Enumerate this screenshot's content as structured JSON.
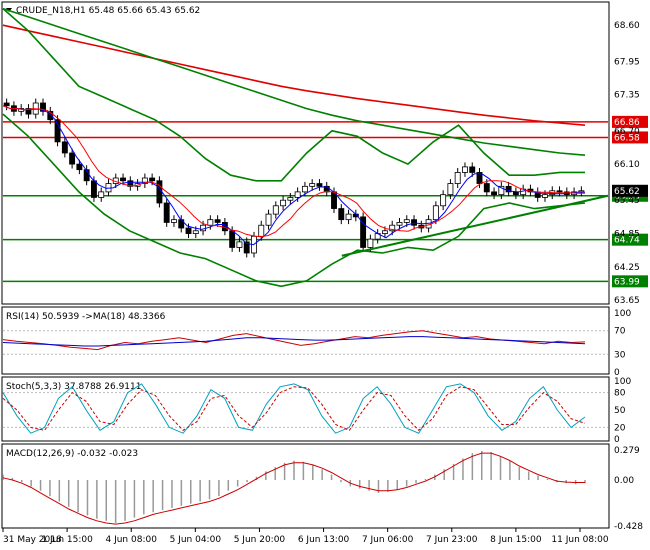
{
  "header": {
    "symbol_line": "CRUDE_N18,H1  65.48 65.66 65.43 65.62"
  },
  "colors": {
    "candle": "#000000",
    "bollinger": "#008000",
    "ma_slow_red": "#e00000",
    "ma_fast_blue": "#0000ff",
    "ma_fast_red": "#ff0000",
    "level_green": "#008000",
    "level_red": "#e00000",
    "rsi_line": "#cc0000",
    "rsi_ma": "#0000cc",
    "stoch_main": "#00a0c0",
    "stoch_signal": "#cc0000",
    "macd_hist": "#999999",
    "macd_signal": "#cc0000"
  },
  "chart_data": [
    {
      "type": "line",
      "name": "price-panel",
      "ylim": [
        63.6,
        69.0
      ],
      "yticks": [
        "68.60",
        "67.95",
        "67.35",
        "66.70",
        "66.10",
        "65.45",
        "64.85",
        "64.25",
        "63.65"
      ],
      "levels": [
        {
          "value": 66.86,
          "label": "66.86",
          "color": "red"
        },
        {
          "value": 66.58,
          "label": "66.58",
          "color": "red"
        },
        {
          "value": 65.53,
          "label": "65.53",
          "color": "green"
        },
        {
          "value": 64.74,
          "label": "64.74",
          "color": "green"
        },
        {
          "value": 63.99,
          "label": "63.99",
          "color": "green"
        }
      ],
      "current_price_label": "65.62",
      "trendline": {
        "from": [
          0.56,
          64.45
        ],
        "to": [
          1.0,
          65.53
        ]
      },
      "close": [
        67.15,
        67.05,
        67.1,
        67.0,
        67.2,
        67.05,
        66.9,
        66.5,
        66.3,
        66.1,
        66.0,
        65.8,
        65.5,
        65.6,
        65.75,
        65.85,
        65.8,
        65.7,
        65.75,
        65.85,
        65.8,
        65.4,
        65.05,
        65.1,
        64.95,
        64.85,
        64.9,
        65.0,
        65.1,
        65.05,
        64.9,
        64.6,
        64.7,
        64.5,
        64.8,
        65.0,
        65.2,
        65.35,
        65.45,
        65.5,
        65.6,
        65.7,
        65.75,
        65.7,
        65.6,
        65.3,
        65.1,
        65.2,
        65.15,
        64.6,
        64.75,
        64.85,
        64.9,
        65.0,
        65.05,
        65.1,
        65.0,
        64.95,
        65.1,
        65.35,
        65.55,
        65.75,
        65.95,
        66.05,
        65.95,
        65.75,
        65.6,
        65.55,
        65.7,
        65.6,
        65.55,
        65.65,
        65.6,
        65.5,
        65.55,
        65.62,
        65.6,
        65.55,
        65.6,
        65.62
      ],
      "ma_slow": [
        68.6,
        68.5,
        68.4,
        68.3,
        68.2,
        68.1,
        68.0,
        67.9,
        67.8,
        67.7,
        67.6,
        67.5,
        67.42,
        67.35,
        67.28,
        67.22,
        67.16,
        67.1,
        67.04,
        66.98,
        66.93,
        66.88,
        66.84,
        66.8
      ],
      "ma_mid": [
        68.9,
        68.75,
        68.6,
        68.45,
        68.3,
        68.15,
        68.0,
        67.85,
        67.7,
        67.55,
        67.4,
        67.25,
        67.1,
        66.98,
        66.88,
        66.8,
        66.72,
        66.64,
        66.56,
        66.48,
        66.42,
        66.36,
        66.3,
        66.26
      ],
      "bb_upper": [
        68.9,
        68.5,
        68.0,
        67.5,
        67.3,
        67.1,
        66.9,
        66.6,
        66.2,
        65.9,
        65.8,
        65.8,
        66.3,
        66.7,
        66.6,
        66.3,
        66.1,
        66.5,
        66.8,
        66.3,
        65.9,
        65.9,
        65.95,
        65.95
      ],
      "bb_lower": [
        67.0,
        66.6,
        66.1,
        65.6,
        65.2,
        64.9,
        64.7,
        64.5,
        64.4,
        64.2,
        64.0,
        63.9,
        64.0,
        64.3,
        64.55,
        64.5,
        64.6,
        64.55,
        64.8,
        65.3,
        65.4,
        65.3,
        65.35,
        65.4
      ],
      "xticks": [
        "31 May 2018",
        "1 Jun 15:00",
        "4 Jun 08:00",
        "5 Jun 04:00",
        "5 Jun 20:00",
        "6 Jun 13:00",
        "7 Jun 06:00",
        "7 Jun 23:00",
        "8 Jun 15:00",
        "11 Jun 08:00"
      ]
    },
    {
      "type": "line",
      "name": "rsi-panel",
      "title": "RSI(14) 50.5939  ->MA(18) 48.3366",
      "ylim": [
        0,
        100
      ],
      "yticks": [
        "100",
        "70",
        "30",
        "0"
      ],
      "rsi": [
        55,
        52,
        50,
        48,
        45,
        42,
        40,
        38,
        45,
        50,
        48,
        52,
        55,
        58,
        54,
        50,
        56,
        62,
        65,
        60,
        55,
        50,
        45,
        48,
        52,
        56,
        60,
        58,
        62,
        65,
        68,
        70,
        66,
        62,
        58,
        60,
        56,
        54,
        52,
        50,
        48,
        52,
        50,
        51
      ],
      "rsi_ma": [
        50,
        49,
        48,
        47,
        46,
        45,
        44,
        44,
        45,
        46,
        47,
        48,
        49,
        50,
        51,
        52,
        54,
        56,
        58,
        58,
        57,
        56,
        55,
        54,
        54,
        55,
        56,
        57,
        58,
        59,
        60,
        60,
        59,
        58,
        57,
        56,
        55,
        54,
        53,
        52,
        51,
        50,
        49,
        48
      ]
    },
    {
      "type": "line",
      "name": "stoch-panel",
      "title": "Stoch(5,3,3) 37.8788 26.9111",
      "ylim": [
        0,
        100
      ],
      "yticks": [
        "100",
        "80",
        "50",
        "20",
        "0"
      ],
      "main": [
        80,
        40,
        10,
        20,
        70,
        90,
        50,
        15,
        30,
        80,
        95,
        60,
        20,
        10,
        40,
        85,
        70,
        20,
        15,
        60,
        90,
        95,
        85,
        40,
        10,
        20,
        70,
        90,
        60,
        20,
        10,
        50,
        90,
        95,
        80,
        40,
        15,
        30,
        70,
        90,
        50,
        20,
        38
      ],
      "signal": [
        70,
        50,
        20,
        15,
        50,
        80,
        65,
        30,
        25,
        60,
        85,
        75,
        40,
        15,
        30,
        70,
        75,
        40,
        20,
        45,
        80,
        90,
        88,
        60,
        25,
        15,
        50,
        80,
        75,
        40,
        15,
        35,
        75,
        90,
        85,
        55,
        25,
        25,
        55,
        80,
        65,
        35,
        27
      ]
    },
    {
      "type": "bar",
      "name": "macd-panel",
      "title": "MACD(12,26,9) -0.032 -0.023",
      "ylim": [
        -0.428,
        0.279
      ],
      "yticks": [
        "0.279",
        "0.00",
        "-0.428"
      ],
      "histogram": [
        0.05,
        0.02,
        -0.02,
        -0.06,
        -0.1,
        -0.15,
        -0.2,
        -0.25,
        -0.3,
        -0.33,
        -0.36,
        -0.38,
        -0.4,
        -0.38,
        -0.35,
        -0.32,
        -0.3,
        -0.28,
        -0.26,
        -0.24,
        -0.22,
        -0.2,
        -0.18,
        -0.15,
        -0.1,
        -0.06,
        -0.02,
        0.03,
        0.08,
        0.12,
        0.16,
        0.18,
        0.17,
        0.14,
        0.1,
        0.05,
        -0.02,
        -0.06,
        -0.08,
        -0.1,
        -0.12,
        -0.11,
        -0.09,
        -0.06,
        -0.03,
        0.01,
        0.05,
        0.1,
        0.15,
        0.2,
        0.25,
        0.27,
        0.26,
        0.22,
        0.18,
        0.12,
        0.08,
        0.04,
        0.01,
        -0.02,
        -0.03,
        -0.04,
        -0.03
      ],
      "signal": [
        0.02,
        0.0,
        -0.03,
        -0.07,
        -0.12,
        -0.17,
        -0.22,
        -0.27,
        -0.31,
        -0.35,
        -0.38,
        -0.4,
        -0.41,
        -0.4,
        -0.38,
        -0.35,
        -0.32,
        -0.3,
        -0.28,
        -0.26,
        -0.24,
        -0.22,
        -0.2,
        -0.17,
        -0.13,
        -0.09,
        -0.04,
        0.01,
        0.06,
        0.1,
        0.14,
        0.16,
        0.16,
        0.14,
        0.11,
        0.07,
        0.02,
        -0.03,
        -0.06,
        -0.08,
        -0.1,
        -0.1,
        -0.09,
        -0.07,
        -0.04,
        -0.01,
        0.03,
        0.08,
        0.13,
        0.18,
        0.22,
        0.25,
        0.25,
        0.22,
        0.18,
        0.13,
        0.09,
        0.05,
        0.02,
        -0.01,
        -0.02,
        -0.023,
        -0.023
      ]
    }
  ]
}
